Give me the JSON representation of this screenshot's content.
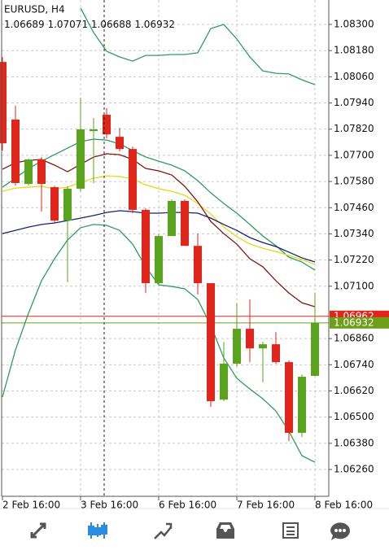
{
  "chart_data": {
    "type": "candlestick",
    "title": "EURUSD, H4",
    "categories": [
      "2 Feb 16:00",
      null,
      null,
      null,
      null,
      null,
      "3 Feb 16:00",
      null,
      null,
      null,
      null,
      null,
      "6 Feb 16:00",
      null,
      null,
      null,
      null,
      null,
      "7 Feb 16:00",
      null,
      null,
      null,
      null,
      null,
      "8 Feb 16:00"
    ],
    "open": [
      1.08128,
      1.07864,
      1.07569,
      1.07681,
      1.07554,
      1.07401,
      1.07547,
      1.07811,
      1.07886,
      1.07785,
      1.07729,
      1.0745,
      1.07114,
      1.0733,
      1.07491,
      1.07285,
      1.07114,
      1.0658,
      1.06745,
      1.06905,
      1.06815,
      1.06834,
      1.06752,
      1.06428,
      1.06689
    ],
    "high": [
      1.08151,
      1.07927,
      1.07685,
      1.07692,
      1.07561,
      1.07558,
      1.07964,
      1.07871,
      1.07916,
      1.07826,
      1.0774,
      1.07457,
      1.07338,
      1.07498,
      1.07498,
      1.07341,
      1.07114,
      1.06845,
      1.07021,
      1.07039,
      1.06845,
      1.0689,
      1.0676,
      1.06696,
      1.07071
    ],
    "low": [
      1.07722,
      1.07561,
      1.07561,
      1.07442,
      1.07386,
      1.07118,
      1.07535,
      1.07573,
      1.07778,
      1.07718,
      1.07435,
      1.07069,
      1.07106,
      1.0733,
      1.07285,
      1.07062,
      1.06547,
      1.06573,
      1.06733,
      1.06752,
      1.06659,
      1.06745,
      1.0639,
      1.06409,
      1.06688
    ],
    "close": [
      1.07755,
      1.07573,
      1.07681,
      1.07569,
      1.07401,
      1.07547,
      1.07819,
      1.07819,
      1.07796,
      1.07729,
      1.0745,
      1.07114,
      1.0733,
      1.07491,
      1.07285,
      1.07114,
      1.06573,
      1.06745,
      1.06905,
      1.06815,
      1.06834,
      1.06752,
      1.06428,
      1.06685,
      1.06932
    ],
    "up_color": "#5aa31e",
    "down_color": "#e0261b",
    "lines": [
      {
        "color": "#2e9d5c",
        "values": [
          null,
          null,
          null,
          null,
          null,
          null,
          1.08375,
          1.08263,
          1.08177,
          1.08151,
          1.08132,
          1.08158,
          1.08158,
          1.08162,
          1.08162,
          1.0817,
          1.08281,
          1.083,
          1.08233,
          1.08151,
          1.08087,
          1.08076,
          1.08073,
          1.08046,
          1.08024
        ]
      },
      {
        "color": "#2e9d5c",
        "values": [
          1.07554,
          1.07595,
          1.0764,
          1.07673,
          1.07703,
          1.07733,
          1.07763,
          1.07774,
          1.0777,
          1.07752,
          1.07722,
          1.07692,
          1.07673,
          1.07655,
          1.07629,
          1.07584,
          1.07528,
          1.07479,
          1.07435,
          1.07383,
          1.0733,
          1.07286,
          1.07233,
          1.07211,
          1.07174
        ]
      },
      {
        "color": "#2e9d5c",
        "values": [
          1.06592,
          1.06808,
          1.06976,
          1.07125,
          1.07226,
          1.07312,
          1.07368,
          1.07383,
          1.07379,
          1.07356,
          1.07293,
          1.07189,
          1.07106,
          1.07099,
          1.07088,
          1.07039,
          1.0692,
          1.06771,
          1.06678,
          1.06629,
          1.06584,
          1.06528,
          1.06435,
          1.06323,
          1.06293
        ]
      },
      {
        "color": "#e8d81a",
        "values": [
          1.07535,
          1.0755,
          1.07554,
          1.07558,
          1.07547,
          1.07554,
          1.07576,
          1.07595,
          1.07606,
          1.07603,
          1.07591,
          1.07565,
          1.07547,
          1.07535,
          1.07517,
          1.07479,
          1.07431,
          1.07371,
          1.07327,
          1.07293,
          1.07274,
          1.07259,
          1.07241,
          1.07222,
          1.072
        ]
      },
      {
        "color": "#7a1a0e",
        "values": [
          1.07636,
          1.07666,
          1.07677,
          1.07681,
          1.07655,
          1.07625,
          1.07659,
          1.07692,
          1.07707,
          1.07703,
          1.07681,
          1.0764,
          1.07629,
          1.0761,
          1.07558,
          1.07487,
          1.07397,
          1.07341,
          1.07293,
          1.07226,
          1.07189,
          1.07125,
          1.07069,
          1.07024,
          1.07006
        ]
      },
      {
        "color": "#14246e",
        "values": [
          1.07341,
          1.07356,
          1.07371,
          1.07383,
          1.0739,
          1.07401,
          1.07412,
          1.07424,
          1.07438,
          1.07446,
          1.07442,
          1.07435,
          1.07435,
          1.07438,
          1.07438,
          1.07435,
          1.07412,
          1.07383,
          1.07356,
          1.07323,
          1.073,
          1.07282,
          1.07256,
          1.0723,
          1.07211
        ]
      }
    ],
    "price_lines": [
      {
        "value": 1.06962,
        "color": "#e0261b"
      },
      {
        "value": 1.06932,
        "color": "#6e9e1a"
      }
    ],
    "ylim": [
      1.06137,
      1.08412
    ],
    "yticks": [
      {
        "value": 1.083,
        "label": "1.08300"
      },
      {
        "value": 1.0818,
        "label": "1.08180"
      },
      {
        "value": 1.0806,
        "label": "1.08060"
      },
      {
        "value": 1.0794,
        "label": "1.07940"
      },
      {
        "value": 1.0782,
        "label": "1.07820"
      },
      {
        "value": 1.077,
        "label": "1.07700"
      },
      {
        "value": 1.0758,
        "label": "1.07580"
      },
      {
        "value": 1.0746,
        "label": "1.07460"
      },
      {
        "value": 1.0734,
        "label": "1.07340"
      },
      {
        "value": 1.0722,
        "label": "1.07220"
      },
      {
        "value": 1.071,
        "label": "1.07100"
      },
      {
        "value": 1.0686,
        "label": "1.06860"
      },
      {
        "value": 1.0674,
        "label": "1.06740"
      },
      {
        "value": 1.0662,
        "label": "1.06620"
      },
      {
        "value": 1.065,
        "label": "1.06500"
      },
      {
        "value": 1.0638,
        "label": "1.06380"
      },
      {
        "value": 1.0626,
        "label": "1.06260"
      }
    ],
    "grid": true
  }
}
